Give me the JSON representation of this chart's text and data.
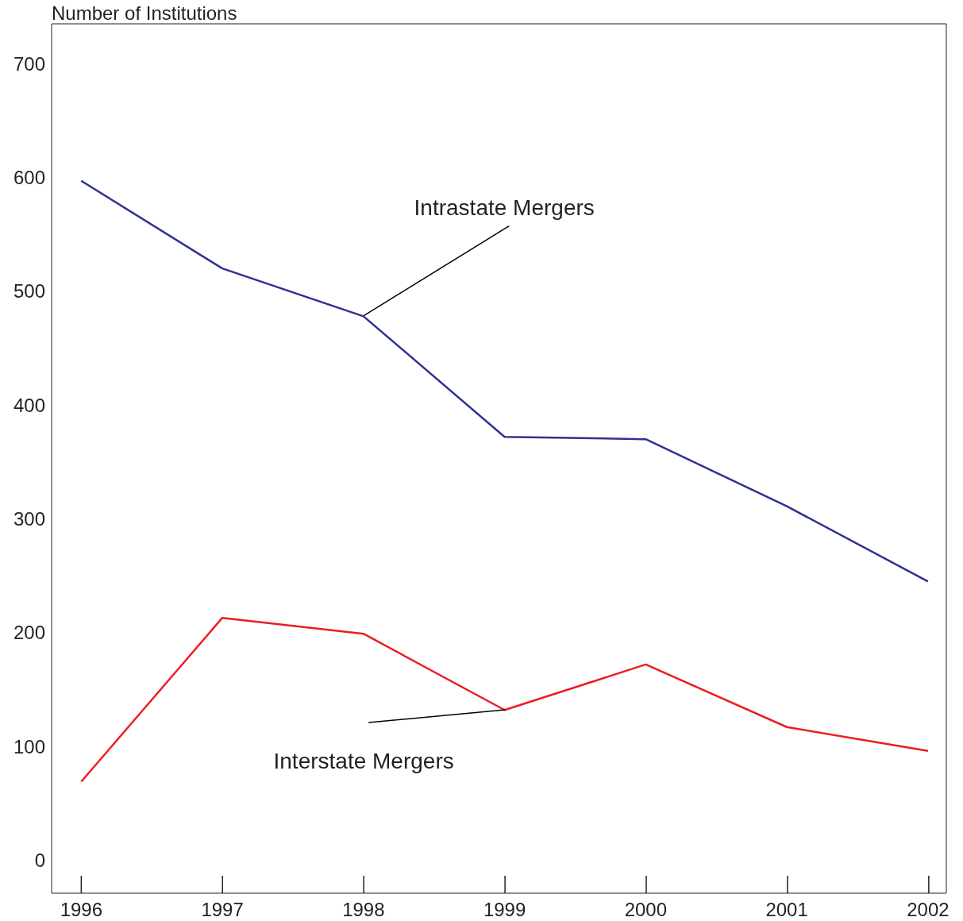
{
  "chart_data": {
    "type": "line",
    "ylabel": "Number of Institutions",
    "x": [
      1996,
      1997,
      1998,
      1999,
      2000,
      2001,
      2002
    ],
    "series": [
      {
        "color": "#2e3192",
        "values": [
          597,
          520,
          478,
          372,
          370,
          311,
          245
        ]
      },
      {
        "color": "#ed1c24",
        "values": [
          69,
          213,
          199,
          132,
          172,
          117,
          96
        ]
      }
    ],
    "xlim": [
      1995.79,
      2002.13
    ],
    "xticks": [
      1996,
      1997,
      1998,
      1999,
      2000,
      2001,
      2002
    ],
    "ylim": [
      -29,
      735
    ],
    "yticks": [
      0,
      100,
      200,
      300,
      400,
      500,
      600,
      700
    ],
    "grid": false,
    "legend": false,
    "marker": "none",
    "line_style": "solid",
    "annotations": [
      {
        "text": "Intrastate Mergers",
        "x": 1998,
        "y": 478
      },
      {
        "text": "Interstate Mergers",
        "x": 1999,
        "y": 132
      }
    ]
  }
}
